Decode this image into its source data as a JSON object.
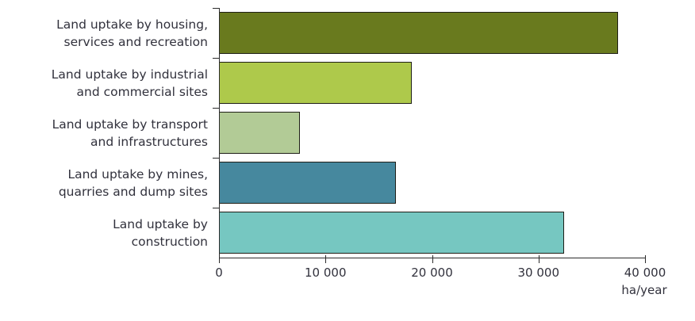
{
  "chart_data": {
    "type": "bar",
    "orientation": "horizontal",
    "title": "",
    "xlabel": "ha/year",
    "ylabel": "",
    "xlim": [
      0,
      40000
    ],
    "grid": false,
    "legend": "none",
    "categories": [
      [
        "Land uptake by housing,",
        "services and recreation"
      ],
      [
        "Land uptake by industrial",
        "and commercial sites"
      ],
      [
        "Land uptake by transport",
        "and infrastructures"
      ],
      [
        "Land uptake by mines,",
        "quarries and dump sites"
      ],
      [
        "Land uptake by",
        "construction"
      ]
    ],
    "values": [
      37500,
      18100,
      7600,
      16600,
      32400
    ],
    "bar_colors": [
      "#697A1E",
      "#AEC94B",
      "#B2CB96",
      "#46889E",
      "#76C7C1"
    ],
    "x_ticks": [
      {
        "label": "0",
        "value": 0
      },
      {
        "label": "10 000",
        "value": 10000
      },
      {
        "label": "20 000",
        "value": 20000
      },
      {
        "label": "30 000",
        "value": 30000
      },
      {
        "label": "40 000",
        "value": 40000
      }
    ]
  },
  "colors": {
    "bar_border": "#1f1f17",
    "axis": "#2b2b2b",
    "text": "#31313c",
    "background": "#ffffff"
  }
}
